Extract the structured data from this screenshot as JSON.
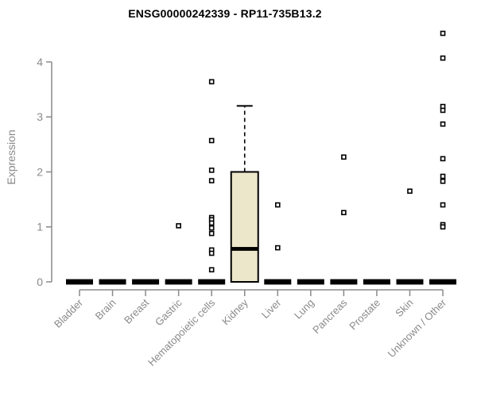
{
  "page": {
    "background": "#ffffff"
  },
  "chart_data": {
    "type": "boxplot",
    "title": "ENSG00000242339 - RP11-735B13.2",
    "ylabel": "Expression",
    "xlabel": "",
    "ylim": [
      0,
      4.6
    ],
    "yticks": [
      0,
      1,
      2,
      3,
      4
    ],
    "grid": false,
    "legend": "none",
    "marker": "open-square",
    "categories": [
      "Bladder",
      "Brain",
      "Breast",
      "Gastric",
      "Hematopoietic cells",
      "Kidney",
      "Liver",
      "Lung",
      "Pancreas",
      "Prostate",
      "Skin",
      "Unknown / Other"
    ],
    "boxes": [
      {
        "category": "Bladder",
        "q1": 0,
        "median": 0,
        "q3": 0,
        "whisker_low": 0,
        "whisker_high": 0,
        "outliers": []
      },
      {
        "category": "Brain",
        "q1": 0,
        "median": 0,
        "q3": 0,
        "whisker_low": 0,
        "whisker_high": 0,
        "outliers": []
      },
      {
        "category": "Breast",
        "q1": 0,
        "median": 0,
        "q3": 0,
        "whisker_low": 0,
        "whisker_high": 0,
        "outliers": []
      },
      {
        "category": "Gastric",
        "q1": 0,
        "median": 0,
        "q3": 0,
        "whisker_low": 0,
        "whisker_high": 0,
        "outliers": [
          1.02
        ]
      },
      {
        "category": "Hematopoietic cells",
        "q1": 0,
        "median": 0,
        "q3": 0,
        "whisker_low": 0,
        "whisker_high": 0,
        "outliers": [
          3.64,
          2.57,
          2.03,
          1.84,
          1.17,
          1.13,
          1.07,
          0.98,
          0.88,
          0.58,
          0.52,
          0.22
        ]
      },
      {
        "category": "Kidney",
        "q1": 0,
        "median": 0.6,
        "q3": 2.0,
        "whisker_low": 0,
        "whisker_high": 3.2,
        "outliers": []
      },
      {
        "category": "Liver",
        "q1": 0,
        "median": 0,
        "q3": 0,
        "whisker_low": 0,
        "whisker_high": 0,
        "outliers": [
          1.4,
          0.62
        ]
      },
      {
        "category": "Lung",
        "q1": 0,
        "median": 0,
        "q3": 0,
        "whisker_low": 0,
        "whisker_high": 0,
        "outliers": []
      },
      {
        "category": "Pancreas",
        "q1": 0,
        "median": 0,
        "q3": 0,
        "whisker_low": 0,
        "whisker_high": 0,
        "outliers": [
          2.27,
          1.26
        ]
      },
      {
        "category": "Prostate",
        "q1": 0,
        "median": 0,
        "q3": 0,
        "whisker_low": 0,
        "whisker_high": 0,
        "outliers": []
      },
      {
        "category": "Skin",
        "q1": 0,
        "median": 0,
        "q3": 0,
        "whisker_low": 0,
        "whisker_high": 0,
        "outliers": [
          1.65
        ]
      },
      {
        "category": "Unknown / Other",
        "q1": 0,
        "median": 0,
        "q3": 0,
        "whisker_low": 0,
        "whisker_high": 0,
        "outliers": [
          4.52,
          4.07,
          3.19,
          3.12,
          2.87,
          2.24,
          1.92,
          1.83,
          1.4,
          1.04,
          1.0
        ]
      }
    ],
    "colors": {
      "box_fill": "#ECE6CB",
      "box_border": "#000000",
      "median": "#000000",
      "outlier_border": "#000000",
      "outlier_fill": "#ffffff",
      "axis": "#8a8a8a",
      "tick_label": "#8a8a8a",
      "title": "#000000",
      "background": "#ffffff"
    }
  }
}
